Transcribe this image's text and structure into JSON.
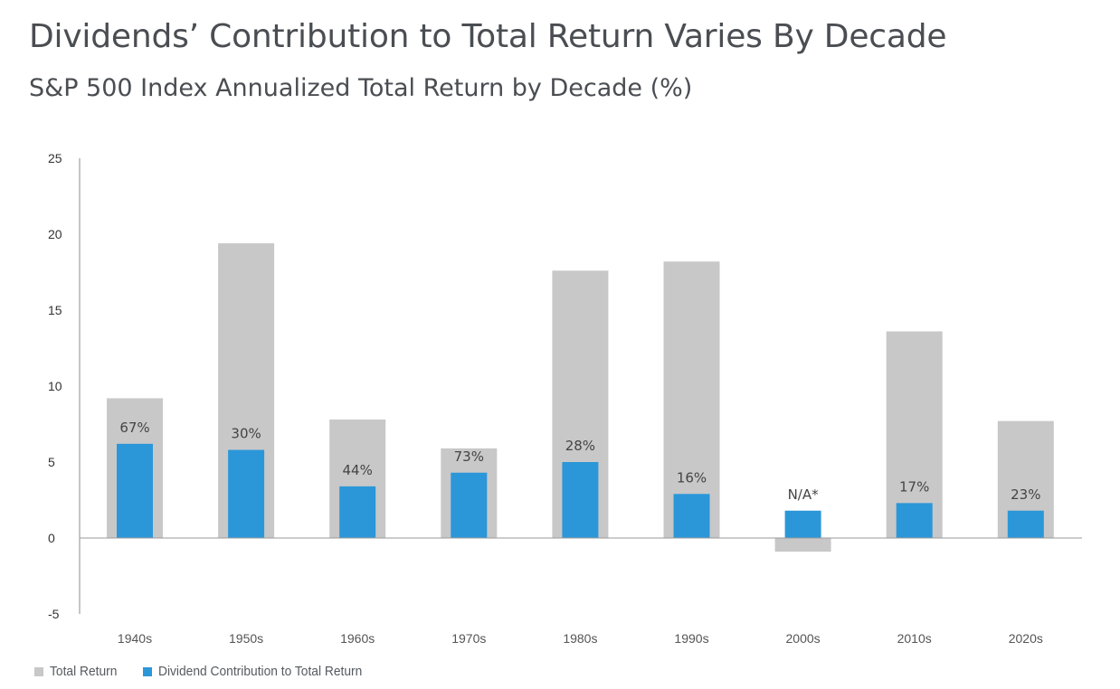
{
  "chart_data": {
    "type": "bar",
    "title": "Dividends’ Contribution to Total Return Varies By Decade",
    "subtitle": "S&P 500 Index Annualized Total Return by Decade (%)",
    "categories": [
      "1940s",
      "1950s",
      "1960s",
      "1970s",
      "1980s",
      "1990s",
      "2000s",
      "2010s",
      "2020s"
    ],
    "series": [
      {
        "name": "Total Return",
        "color": "#c8c8c9",
        "values": [
          9.2,
          19.4,
          7.8,
          5.9,
          17.6,
          18.2,
          -0.9,
          13.6,
          7.7
        ]
      },
      {
        "name": "Dividend Contribution to Total Return",
        "color": "#2b97d8",
        "values": [
          6.2,
          5.8,
          3.4,
          4.3,
          5.0,
          2.9,
          1.8,
          2.3,
          1.8
        ]
      }
    ],
    "data_labels": [
      "67%",
      "30%",
      "44%",
      "73%",
      "28%",
      "16%",
      "N/A*",
      "17%",
      "23%"
    ],
    "yticks": [
      25,
      20,
      15,
      10,
      5,
      0,
      -5
    ],
    "ylim": [
      -5,
      25
    ],
    "xlabel": "",
    "ylabel": "",
    "grid": false,
    "legend_position": "bottom-left"
  }
}
